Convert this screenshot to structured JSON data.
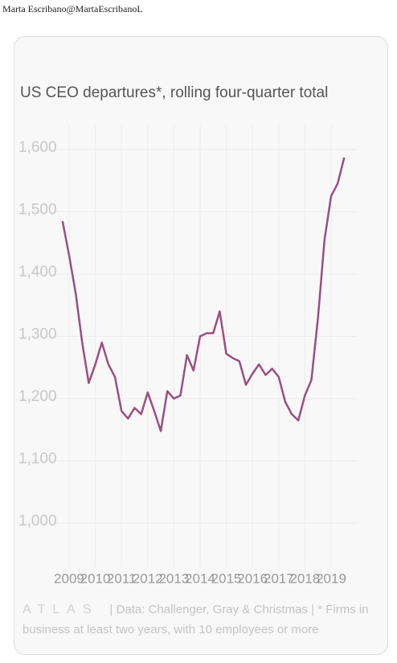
{
  "header": {
    "author": "Marta Escribano@MartaEscribanoL"
  },
  "chart_data": {
    "type": "line",
    "title": "US CEO departures*, rolling four-quarter total",
    "x": [
      2008.75,
      2009,
      2009.25,
      2009.5,
      2009.75,
      2010,
      2010.25,
      2010.5,
      2010.75,
      2011,
      2011.25,
      2011.5,
      2011.75,
      2012,
      2012.25,
      2012.5,
      2012.75,
      2013,
      2013.25,
      2013.5,
      2013.75,
      2014,
      2014.25,
      2014.5,
      2014.75,
      2015,
      2015.25,
      2015.5,
      2015.75,
      2016,
      2016.25,
      2016.5,
      2016.75,
      2017,
      2017.25,
      2017.5,
      2017.75,
      2018,
      2018.25,
      2018.5,
      2018.75,
      2019,
      2019.25,
      2019.5
    ],
    "series": [
      {
        "name": "CEO departures",
        "color": "#9b4f7e",
        "values": [
          1485,
          1430,
          1370,
          1290,
          1225,
          1255,
          1290,
          1255,
          1235,
          1180,
          1168,
          1185,
          1175,
          1210,
          1180,
          1148,
          1212,
          1200,
          1205,
          1270,
          1245,
          1300,
          1305,
          1305,
          1340,
          1272,
          1265,
          1260,
          1222,
          1240,
          1255,
          1238,
          1248,
          1235,
          1195,
          1175,
          1165,
          1205,
          1230,
          1330,
          1455,
          1525,
          1545,
          1587
        ]
      }
    ],
    "xlim": [
      2008.25,
      2020
    ],
    "xticks": [
      2009,
      2010,
      2011,
      2012,
      2013,
      2014,
      2015,
      2016,
      2017,
      2018,
      2019
    ],
    "ylim": [
      1000,
      1600
    ],
    "yticks": [
      {
        "value": 1000,
        "label": "1,000"
      },
      {
        "value": 1100,
        "label": "1,100"
      },
      {
        "value": 1200,
        "label": "1,200"
      },
      {
        "value": 1300,
        "label": "1,300"
      },
      {
        "value": 1400,
        "label": "1,400"
      },
      {
        "value": 1500,
        "label": "1,500"
      },
      {
        "value": 1600,
        "label": "1,600"
      }
    ],
    "grid": true,
    "logo": "ATLAS",
    "source": "| Data: Challenger, Gray & Christmas | * Firms in business at least two years, with 10 employees or more"
  }
}
